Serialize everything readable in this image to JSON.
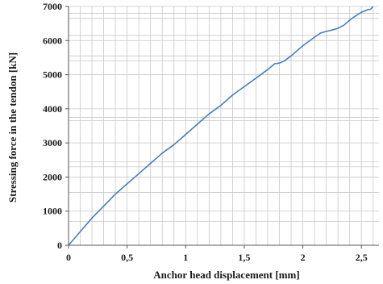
{
  "chart_data": {
    "type": "line",
    "title": "",
    "xlabel": "Anchor head displacement [mm]",
    "ylabel": "Stressing force in the tendon [kN]",
    "xlim": [
      0,
      2.65
    ],
    "ylim": [
      0,
      7000
    ],
    "x_ticks": [
      {
        "value": 0,
        "label": "0"
      },
      {
        "value": 0.5,
        "label": "0,5"
      },
      {
        "value": 1,
        "label": "1"
      },
      {
        "value": 1.5,
        "label": "1,5"
      },
      {
        "value": 2,
        "label": "2"
      },
      {
        "value": 2.5,
        "label": "2,5"
      }
    ],
    "y_ticks": [
      {
        "value": 0,
        "label": "0"
      },
      {
        "value": 1000,
        "label": "1000"
      },
      {
        "value": 2000,
        "label": "2000"
      },
      {
        "value": 3000,
        "label": "3000"
      },
      {
        "value": 4000,
        "label": "4000"
      },
      {
        "value": 5000,
        "label": "5000"
      },
      {
        "value": 6000,
        "label": "6000"
      },
      {
        "value": 7000,
        "label": "7000"
      }
    ],
    "grid": true,
    "line_color": "#4a7db5",
    "series": [
      {
        "x": [
          0,
          0.1,
          0.2,
          0.3,
          0.4,
          0.5,
          0.6,
          0.7,
          0.8,
          0.9,
          1.0,
          1.1,
          1.2,
          1.3,
          1.4,
          1.5,
          1.6,
          1.7,
          1.76,
          1.8,
          1.84,
          1.9,
          2.0,
          2.1,
          2.15,
          2.2,
          2.25,
          2.3,
          2.35,
          2.4,
          2.45,
          2.5,
          2.55,
          2.58,
          2.6
        ],
        "y": [
          0,
          400,
          800,
          1150,
          1500,
          1800,
          2100,
          2400,
          2700,
          2950,
          3250,
          3550,
          3850,
          4100,
          4400,
          4650,
          4900,
          5150,
          5320,
          5340,
          5400,
          5550,
          5850,
          6100,
          6220,
          6270,
          6310,
          6360,
          6450,
          6600,
          6720,
          6830,
          6900,
          6920,
          7000
        ]
      }
    ]
  }
}
